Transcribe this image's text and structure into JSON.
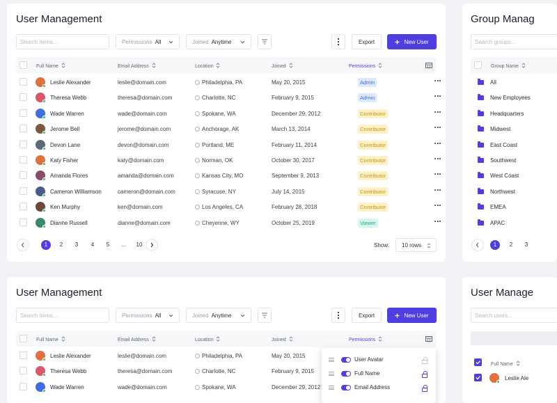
{
  "panel1": {
    "title": "User Management",
    "search_placeholder": "Search items...",
    "permissions_label": "Permissions",
    "permissions_value": "All",
    "joined_label": "Joined",
    "joined_value": "Anytime",
    "export_label": "Export",
    "new_user_label": "New User",
    "columns": [
      "Full Name",
      "Email Address",
      "Location",
      "Joined",
      "Permissions"
    ],
    "rows": [
      {
        "name": "Leslie Alexander",
        "email": "leslie@domain.com",
        "location": "Philadelphia, PA",
        "joined": "May 20, 2015",
        "permission": "Admin"
      },
      {
        "name": "Theresa Webb",
        "email": "theresa@domain.com",
        "location": "Charlotte, NC",
        "joined": "February 9, 2015",
        "permission": "Admin"
      },
      {
        "name": "Wade Warren",
        "email": "wade@domain.com",
        "location": "Spokane, WA",
        "joined": "December 29, 2012",
        "permission": "Contributor"
      },
      {
        "name": "Jerome Bell",
        "email": "jerome@domain.com",
        "location": "Anchorage, AK",
        "joined": "March 13, 2014",
        "permission": "Contributor"
      },
      {
        "name": "Devon Lane",
        "email": "devon@domain.com",
        "location": "Portland, ME",
        "joined": "February 11, 2014",
        "permission": "Contributor"
      },
      {
        "name": "Katy Fisher",
        "email": "katy@domain.com",
        "location": "Norman, OK",
        "joined": "October 30, 2017",
        "permission": "Contributor"
      },
      {
        "name": "Amanda Flores",
        "email": "amanda@domain.com",
        "location": "Kansas City, MO",
        "joined": "September 9, 2013",
        "permission": "Contributor"
      },
      {
        "name": "Cameron Williamson",
        "email": "cameron@domain.com",
        "location": "Syracuse, NY",
        "joined": "July 14, 2015",
        "permission": "Contributor"
      },
      {
        "name": "Ken Murphy",
        "email": "ken@domain.com",
        "location": "Los Angeles, CA",
        "joined": "February 28, 2018",
        "permission": "Contributor"
      },
      {
        "name": "Dianne Russell",
        "email": "dianne@domain.com",
        "location": "Cheyenne, WY",
        "joined": "October 25, 2019",
        "permission": "Viewer"
      }
    ],
    "pages": [
      "1",
      "2",
      "3",
      "4",
      "5",
      "...",
      "10"
    ],
    "show_label": "Show:",
    "rows_value": "10 rows"
  },
  "panel2": {
    "title": "Group Manag",
    "search_placeholder": "Search groups...",
    "column": "Group Name",
    "groups": [
      "All",
      "New Employees",
      "Headquarters",
      "Midwest",
      "East Coast",
      "Southwest",
      "West Coast",
      "Northwest",
      "EMEA",
      "APAC"
    ],
    "pages": [
      "1",
      "2",
      "3"
    ]
  },
  "panel3": {
    "title": "User Management",
    "search_placeholder": "Search items...",
    "permissions_label": "Permissions",
    "permissions_value": "All",
    "joined_label": "Joined",
    "joined_value": "Anytime",
    "export_label": "Export",
    "new_user_label": "New User",
    "columns": [
      "Full Name",
      "Email Address",
      "Location",
      "Joined",
      "Permissions"
    ],
    "rows": [
      {
        "name": "Leslie Alexander",
        "email": "leslie@domain.com",
        "location": "Philadelphia, PA",
        "joined": "May 20, 2015"
      },
      {
        "name": "Theresa Webb",
        "email": "theresa@domain.com",
        "location": "Charlotte, NC",
        "joined": "February 9, 2015"
      },
      {
        "name": "Wade Warren",
        "email": "wade@domain.com",
        "location": "Spokane, WA",
        "joined": "December 29, 2012"
      }
    ],
    "column_menu": [
      "User Avatar",
      "Full Name",
      "Email Address"
    ]
  },
  "panel4": {
    "title": "User Manage",
    "search_placeholder": "Search users...",
    "column": "Full Name",
    "first_row": "Leslie Ale"
  },
  "colors": {
    "accent": "#4f3fe0",
    "admin": "#3d6fe0",
    "contributor": "#c9920d",
    "viewer": "#20a98a"
  }
}
